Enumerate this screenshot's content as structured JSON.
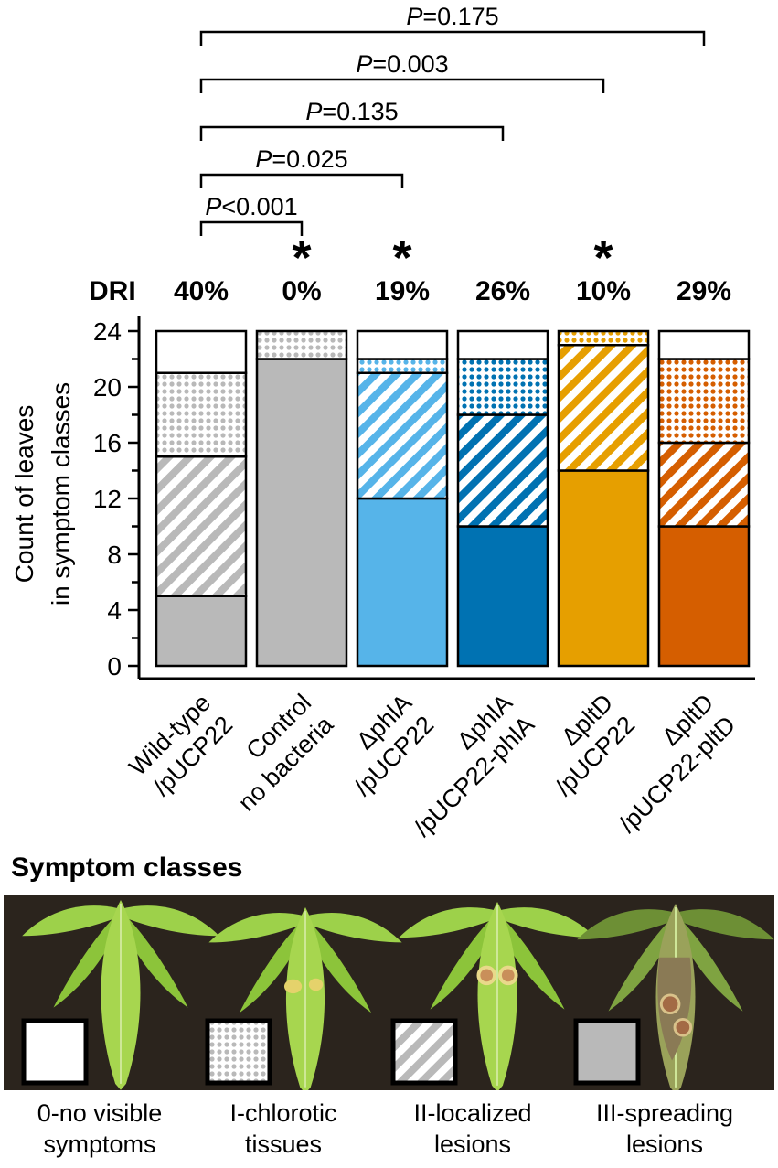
{
  "chart_data": {
    "type": "bar",
    "stacked": true,
    "ylabel_line1": "Count of leaves",
    "ylabel_line2": "in symptom classes",
    "ylim": [
      0,
      24
    ],
    "yticks": [
      "0",
      "4",
      "8",
      "12",
      "16",
      "20",
      "24"
    ],
    "dri_label": "DRI",
    "categories": [
      {
        "line1": "Wild-type",
        "line2": "/pUCP22",
        "dri": "40%",
        "significant": false,
        "color": "#b9b9b9",
        "light": "#b9b9b9",
        "values": {
          "III": 5,
          "II": 10,
          "I": 6,
          "0": 3
        }
      },
      {
        "line1": "Control",
        "line2": "no bacteria",
        "dri": "0%",
        "significant": true,
        "color": "#b9b9b9",
        "light": "#b9b9b9",
        "values": {
          "III": 22,
          "II": 0,
          "I": 2,
          "0": 0
        }
      },
      {
        "line1": "ΔphlA",
        "line2": "/pUCP22",
        "dri": "19%",
        "significant": true,
        "color": "#56b4e9",
        "light": "#56b4e9",
        "values": {
          "III": 12,
          "II": 9,
          "I": 1,
          "0": 2
        }
      },
      {
        "line1": "ΔphlA",
        "line2": "/pUCP22-phlA",
        "dri": "26%",
        "significant": false,
        "color": "#0072b2",
        "light": "#0072b2",
        "values": {
          "III": 10,
          "II": 8,
          "I": 4,
          "0": 2
        }
      },
      {
        "line1": "ΔpltD",
        "line2": "/pUCP22",
        "dri": "10%",
        "significant": true,
        "color": "#e69f00",
        "light": "#e69f00",
        "values": {
          "III": 14,
          "II": 9,
          "I": 1,
          "0": 0
        }
      },
      {
        "line1": "ΔpltD",
        "line2": "/pUCP22-pltD",
        "dri": "29%",
        "significant": false,
        "color": "#d55e00",
        "light": "#d55e00",
        "values": {
          "III": 10,
          "II": 6,
          "I": 6,
          "0": 2
        }
      }
    ],
    "comparisons": [
      {
        "from": 0,
        "to": 1,
        "p": "<0.001"
      },
      {
        "from": 0,
        "to": 2,
        "p": "=0.025"
      },
      {
        "from": 0,
        "to": 3,
        "p": "=0.135"
      },
      {
        "from": 0,
        "to": 4,
        "p": "=0.003"
      },
      {
        "from": 0,
        "to": 5,
        "p": "=0.175"
      }
    ],
    "p_letter": "P",
    "star": "*"
  },
  "legend": {
    "title": "Symptom classes",
    "classes": [
      {
        "key": "0",
        "line1": "0-no visible",
        "line2": "symptoms",
        "pattern": "empty"
      },
      {
        "key": "I",
        "line1": "I-chlorotic",
        "line2": "tissues",
        "pattern": "dots"
      },
      {
        "key": "II",
        "line1": "II-localized",
        "line2": "lesions",
        "pattern": "stripes"
      },
      {
        "key": "III",
        "line1": "III-spreading",
        "line2": "lesions",
        "pattern": "solid"
      }
    ]
  }
}
